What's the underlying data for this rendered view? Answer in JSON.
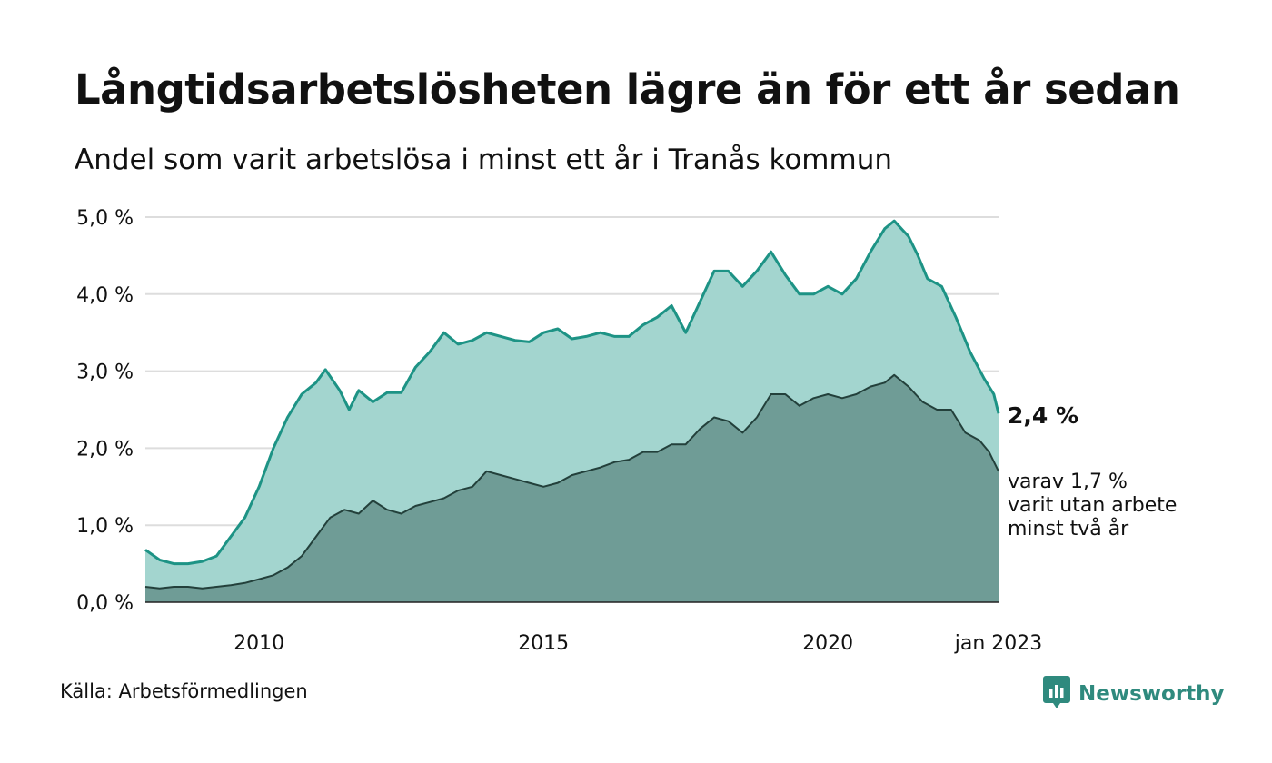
{
  "header": {
    "title": "Långtidsarbetslösheten lägre än för ett år sedan",
    "subtitle": "Andel som varit arbetslösa i minst ett år i Tranås kommun"
  },
  "footer": {
    "source": "Källa: Arbetsförmedlingen",
    "brand": "Newsworthy",
    "brand_icon": "bar-chart-icon"
  },
  "colors": {
    "main_line": "#1d9385",
    "main_fill": "#a3d5cf",
    "sub_line": "#23403b",
    "sub_fill": "#6f9c96",
    "grid": "#dddddd",
    "brand": "#2f8a7e"
  },
  "chart_data": {
    "type": "area",
    "x_range": [
      "2008-01",
      "2023-01"
    ],
    "x_ticks": [
      {
        "value": "2010-01",
        "label": "2010"
      },
      {
        "value": "2015-01",
        "label": "2015"
      },
      {
        "value": "2020-01",
        "label": "2020"
      },
      {
        "value": "2023-01",
        "label": "jan 2023"
      }
    ],
    "y_ticks": [
      {
        "value": 0,
        "label": "0,0 %"
      },
      {
        "value": 1,
        "label": "1,0 %"
      },
      {
        "value": 2,
        "label": "2,0 %"
      },
      {
        "value": 3,
        "label": "3,0 %"
      },
      {
        "value": 4,
        "label": "4,0 %"
      },
      {
        "value": 5,
        "label": "5,0 %"
      }
    ],
    "ylim": [
      0,
      5
    ],
    "grid": true,
    "end_labels": {
      "main": "2,4 %",
      "sub": [
        "varav 1,7 %",
        "varit utan arbete",
        "minst två år"
      ]
    },
    "series": [
      {
        "points": [
          [
            "2008-01",
            0.68
          ],
          [
            "2008-04",
            0.55
          ],
          [
            "2008-07",
            0.5
          ],
          [
            "2008-10",
            0.5
          ],
          [
            "2009-01",
            0.53
          ],
          [
            "2009-04",
            0.6
          ],
          [
            "2009-07",
            0.85
          ],
          [
            "2009-10",
            1.1
          ],
          [
            "2010-01",
            1.5
          ],
          [
            "2010-04",
            2.0
          ],
          [
            "2010-07",
            2.4
          ],
          [
            "2010-10",
            2.7
          ],
          [
            "2011-01",
            2.85
          ],
          [
            "2011-03",
            3.02
          ],
          [
            "2011-06",
            2.75
          ],
          [
            "2011-08",
            2.5
          ],
          [
            "2011-10",
            2.75
          ],
          [
            "2012-01",
            2.6
          ],
          [
            "2012-04",
            2.72
          ],
          [
            "2012-07",
            2.72
          ],
          [
            "2012-10",
            3.05
          ],
          [
            "2013-01",
            3.25
          ],
          [
            "2013-04",
            3.5
          ],
          [
            "2013-07",
            3.35
          ],
          [
            "2013-10",
            3.4
          ],
          [
            "2014-01",
            3.5
          ],
          [
            "2014-04",
            3.45
          ],
          [
            "2014-07",
            3.4
          ],
          [
            "2014-10",
            3.38
          ],
          [
            "2015-01",
            3.5
          ],
          [
            "2015-04",
            3.55
          ],
          [
            "2015-07",
            3.42
          ],
          [
            "2015-10",
            3.45
          ],
          [
            "2016-01",
            3.5
          ],
          [
            "2016-04",
            3.45
          ],
          [
            "2016-07",
            3.45
          ],
          [
            "2016-10",
            3.6
          ],
          [
            "2017-01",
            3.7
          ],
          [
            "2017-04",
            3.85
          ],
          [
            "2017-07",
            3.5
          ],
          [
            "2017-10",
            3.9
          ],
          [
            "2018-01",
            4.3
          ],
          [
            "2018-04",
            4.3
          ],
          [
            "2018-07",
            4.1
          ],
          [
            "2018-10",
            4.3
          ],
          [
            "2019-01",
            4.55
          ],
          [
            "2019-04",
            4.25
          ],
          [
            "2019-07",
            4.0
          ],
          [
            "2019-10",
            4.0
          ],
          [
            "2020-01",
            4.1
          ],
          [
            "2020-04",
            4.0
          ],
          [
            "2020-07",
            4.2
          ],
          [
            "2020-10",
            4.55
          ],
          [
            "2021-01",
            4.85
          ],
          [
            "2021-03",
            4.95
          ],
          [
            "2021-06",
            4.75
          ],
          [
            "2021-08",
            4.5
          ],
          [
            "2021-10",
            4.2
          ],
          [
            "2022-01",
            4.1
          ],
          [
            "2022-04",
            3.7
          ],
          [
            "2022-07",
            3.25
          ],
          [
            "2022-10",
            2.9
          ],
          [
            "2022-12",
            2.7
          ],
          [
            "2023-01",
            2.45
          ]
        ]
      },
      {
        "points": [
          [
            "2008-01",
            0.2
          ],
          [
            "2008-04",
            0.18
          ],
          [
            "2008-07",
            0.2
          ],
          [
            "2008-10",
            0.2
          ],
          [
            "2009-01",
            0.18
          ],
          [
            "2009-04",
            0.2
          ],
          [
            "2009-07",
            0.22
          ],
          [
            "2009-10",
            0.25
          ],
          [
            "2010-01",
            0.3
          ],
          [
            "2010-04",
            0.35
          ],
          [
            "2010-07",
            0.45
          ],
          [
            "2010-10",
            0.6
          ],
          [
            "2011-01",
            0.85
          ],
          [
            "2011-04",
            1.1
          ],
          [
            "2011-07",
            1.2
          ],
          [
            "2011-10",
            1.15
          ],
          [
            "2012-01",
            1.32
          ],
          [
            "2012-04",
            1.2
          ],
          [
            "2012-07",
            1.15
          ],
          [
            "2012-10",
            1.25
          ],
          [
            "2013-01",
            1.3
          ],
          [
            "2013-04",
            1.35
          ],
          [
            "2013-07",
            1.45
          ],
          [
            "2013-10",
            1.5
          ],
          [
            "2014-01",
            1.7
          ],
          [
            "2014-04",
            1.65
          ],
          [
            "2014-07",
            1.6
          ],
          [
            "2014-10",
            1.55
          ],
          [
            "2015-01",
            1.5
          ],
          [
            "2015-04",
            1.55
          ],
          [
            "2015-07",
            1.65
          ],
          [
            "2015-10",
            1.7
          ],
          [
            "2016-01",
            1.75
          ],
          [
            "2016-04",
            1.82
          ],
          [
            "2016-07",
            1.85
          ],
          [
            "2016-10",
            1.95
          ],
          [
            "2017-01",
            1.95
          ],
          [
            "2017-04",
            2.05
          ],
          [
            "2017-07",
            2.05
          ],
          [
            "2017-10",
            2.25
          ],
          [
            "2018-01",
            2.4
          ],
          [
            "2018-04",
            2.35
          ],
          [
            "2018-07",
            2.2
          ],
          [
            "2018-10",
            2.4
          ],
          [
            "2019-01",
            2.7
          ],
          [
            "2019-04",
            2.7
          ],
          [
            "2019-07",
            2.55
          ],
          [
            "2019-10",
            2.65
          ],
          [
            "2020-01",
            2.7
          ],
          [
            "2020-04",
            2.65
          ],
          [
            "2020-07",
            2.7
          ],
          [
            "2020-10",
            2.8
          ],
          [
            "2021-01",
            2.85
          ],
          [
            "2021-03",
            2.95
          ],
          [
            "2021-06",
            2.8
          ],
          [
            "2021-09",
            2.6
          ],
          [
            "2021-12",
            2.5
          ],
          [
            "2022-03",
            2.5
          ],
          [
            "2022-06",
            2.2
          ],
          [
            "2022-09",
            2.1
          ],
          [
            "2022-11",
            1.95
          ],
          [
            "2023-01",
            1.7
          ]
        ]
      }
    ]
  }
}
